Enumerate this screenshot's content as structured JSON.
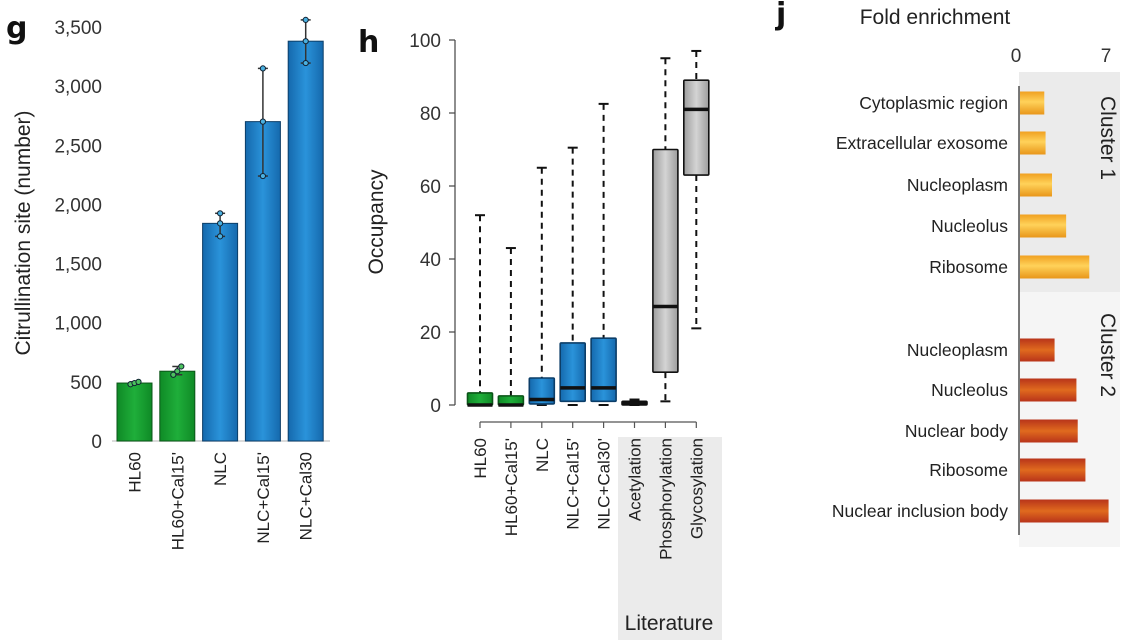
{
  "panels": {
    "g": {
      "letter": "g"
    },
    "h": {
      "letter": "h"
    },
    "j": {
      "letter": "j"
    }
  },
  "colors": {
    "green": "#16a030",
    "green_dark": "#0d6e1f",
    "blue": "#1a7dc8",
    "blue_dark": "#0d4a7e",
    "gray_box": "#bdbdbd",
    "literature_bg": "#ebebeb",
    "cluster1_bg": "#ebebeb",
    "cluster2_bg": "#f5f5f5",
    "orange": "#f5a623",
    "red_orange": "#c8461a"
  },
  "chart_data": [
    {
      "id": "g",
      "type": "bar",
      "title": "",
      "xlabel": "",
      "ylabel": "Citrullination site (number)",
      "ylim": [
        0,
        3500
      ],
      "yticks": [
        0,
        500,
        1000,
        1500,
        2000,
        2500,
        3000,
        3500
      ],
      "ytick_labels": [
        "0",
        "500",
        "1,000",
        "1,500",
        "2,000",
        "2,500",
        "3,000",
        "3,500"
      ],
      "grid": false,
      "categories": [
        "HL60",
        "HL60+Cal15'",
        "NLC",
        "NLC+Cal15'",
        "NLC+Cal30"
      ],
      "values": [
        490,
        590,
        1840,
        2700,
        3380
      ],
      "bar_colors": [
        "green",
        "green",
        "blue",
        "blue",
        "blue"
      ],
      "replicate_points": [
        [
          480,
          490,
          500
        ],
        [
          560,
          590,
          630
        ],
        [
          1730,
          1840,
          1925
        ],
        [
          2240,
          2700,
          3150
        ],
        [
          3195,
          3380,
          3560
        ]
      ],
      "error_bars": [
        [
          480,
          500
        ],
        [
          560,
          630
        ],
        [
          1730,
          1925
        ],
        [
          2240,
          3150
        ],
        [
          3195,
          3560
        ]
      ]
    },
    {
      "id": "h",
      "type": "box",
      "title": "",
      "xlabel": "",
      "ylabel": "Occupancy",
      "ylim": [
        0,
        100
      ],
      "yticks": [
        0,
        20,
        40,
        60,
        80,
        100
      ],
      "ytick_labels": [
        "0",
        "20",
        "40",
        "60",
        "80",
        "100"
      ],
      "grid": false,
      "categories": [
        "HL60",
        "HL60+Cal15'",
        "NLC",
        "NLC+Cal15'",
        "NLC+Cal30'",
        "Acetylation",
        "Phosphorylation",
        "Glycosylation"
      ],
      "group_label": "Literature",
      "group_members": [
        "Acetylation",
        "Phosphorylation",
        "Glycosylation"
      ],
      "boxes": [
        {
          "name": "HL60",
          "min": 0,
          "q1": 0,
          "median": 0,
          "q3": 3.3,
          "max": 52,
          "color": "green"
        },
        {
          "name": "HL60+Cal15'",
          "min": 0,
          "q1": 0,
          "median": 0,
          "q3": 2.5,
          "max": 43,
          "color": "green"
        },
        {
          "name": "NLC",
          "min": 0,
          "q1": 0.3,
          "median": 1.5,
          "q3": 7.4,
          "max": 65,
          "color": "blue"
        },
        {
          "name": "NLC+Cal15'",
          "min": 0,
          "q1": 1,
          "median": 4.7,
          "q3": 17,
          "max": 70.5,
          "color": "blue"
        },
        {
          "name": "NLC+Cal30'",
          "min": 0,
          "q1": 1,
          "median": 4.7,
          "q3": 18.3,
          "max": 82.5,
          "color": "blue"
        },
        {
          "name": "Acetylation",
          "min": 0,
          "q1": 0,
          "median": 0.5,
          "q3": 1,
          "max": 1.5,
          "color": "gray_box"
        },
        {
          "name": "Phosphorylation",
          "min": 1,
          "q1": 9,
          "median": 27,
          "q3": 70,
          "max": 95,
          "color": "gray_box"
        },
        {
          "name": "Glycosylation",
          "min": 21,
          "q1": 63,
          "median": 81,
          "q3": 89,
          "max": 97,
          "color": "gray_box"
        }
      ]
    },
    {
      "id": "j",
      "type": "bar",
      "orientation": "horizontal",
      "title": "Fold enrichment",
      "xlabel": "",
      "ylabel": "",
      "xlim": [
        0,
        7
      ],
      "xticks": [
        0,
        7
      ],
      "xtick_labels": [
        "0",
        "7"
      ],
      "grid": false,
      "clusters": [
        {
          "name": "Cluster 1",
          "color": "orange",
          "categories": [
            "Cytoplasmic region",
            "Extracellular exosome",
            "Nucleoplasm",
            "Nucleolus",
            "Ribosome"
          ],
          "values": [
            2.2,
            2.3,
            2.8,
            3.9,
            5.7
          ]
        },
        {
          "name": "Cluster 2",
          "color": "red_orange",
          "categories": [
            "Nucleoplasm",
            "Nucleolus",
            "Nuclear body",
            "Ribosome",
            "Nuclear inclusion body"
          ],
          "values": [
            3.0,
            4.7,
            4.8,
            5.4,
            7.2
          ]
        }
      ]
    }
  ]
}
